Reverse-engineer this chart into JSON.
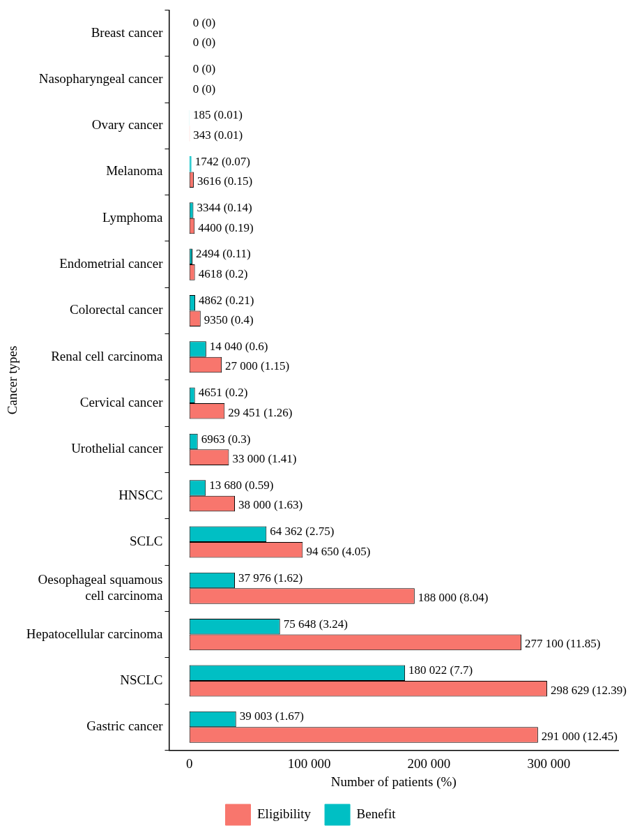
{
  "chart_data": {
    "type": "bar",
    "orientation": "horizontal",
    "xlabel": "Number of patients (%)",
    "ylabel": "Cancer types",
    "categories": [
      "Breast cancer",
      "Nasopharyngeal cancer",
      "Ovary cancer",
      "Melanoma",
      "Lymphoma",
      "Endometrial cancer",
      "Colorectal cancer",
      "Renal cell carcinoma",
      "Cervical cancer",
      "Urothelial cancer",
      "HNSCC",
      "SCLC",
      "Oesophageal squamous cell carcinoma",
      "Hepatocellular carcinoma",
      "NSCLC",
      "Gastric cancer"
    ],
    "series": [
      {
        "name": "Benefit",
        "color": "#00bfc4",
        "values": [
          0,
          0,
          185,
          1742,
          3344,
          2494,
          4862,
          14040,
          4651,
          6963,
          13680,
          64362,
          37976,
          75648,
          180022,
          39003
        ],
        "value_labels": [
          "0 (0)",
          "0 (0)",
          "185 (0.01)",
          "1742 (0.07)",
          "3344 (0.14)",
          "2494 (0.11)",
          "4862 (0.21)",
          "14 040 (0.6)",
          "4651 (0.2)",
          "6963 (0.3)",
          "13 680 (0.59)",
          "64 362 (2.75)",
          "37 976 (1.62)",
          "75 648 (3.24)",
          "180 022 (7.7)",
          "39 003 (1.67)"
        ]
      },
      {
        "name": "Eligibility",
        "color": "#f8766d",
        "values": [
          0,
          0,
          343,
          3616,
          4400,
          4618,
          9350,
          27000,
          29451,
          33000,
          38000,
          94650,
          188000,
          277100,
          298629,
          291000
        ],
        "value_labels": [
          "0 (0)",
          "0 (0)",
          "343 (0.01)",
          "3616 (0.15)",
          "4400 (0.19)",
          "4618 (0.2)",
          "9350 (0.4)",
          "27 000 (1.15)",
          "29 451 (1.26)",
          "33 000 (1.41)",
          "38 000 (1.63)",
          "94 650 (4.05)",
          "188 000 (8.04)",
          "277 100 (11.85)",
          "298 629 (12.39)",
          "291 000 (12.45)"
        ]
      }
    ],
    "xlim": [
      -17000,
      358000
    ],
    "xticks": [
      0,
      {
        "value": 100000,
        "label": "100 000"
      },
      {
        "value": 200000,
        "label": "200 000"
      },
      {
        "value": 300000,
        "label": "300 000"
      }
    ],
    "grid": false,
    "legend": "bottom"
  }
}
